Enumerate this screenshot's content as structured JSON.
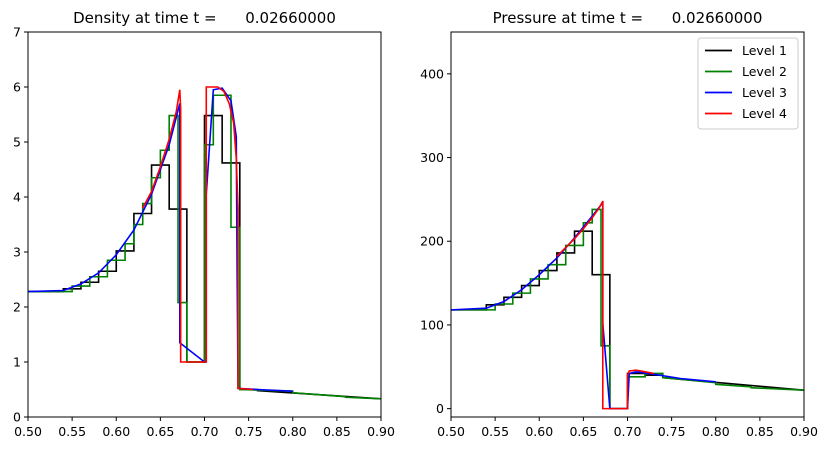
{
  "chart_data": [
    {
      "type": "line",
      "title": "Density at time t =      0.02660000",
      "xlabel": "",
      "ylabel": "",
      "xlim": [
        0.5,
        0.9
      ],
      "ylim": [
        0,
        7
      ],
      "xticks": [
        "0.50",
        "0.55",
        "0.60",
        "0.65",
        "0.70",
        "0.75",
        "0.80",
        "0.85",
        "0.90"
      ],
      "yticks": [
        "0",
        "1",
        "2",
        "3",
        "4",
        "5",
        "6",
        "7"
      ],
      "grid": false,
      "legend": null,
      "series": [
        {
          "name": "Level 1",
          "color": "#000000",
          "x": [
            0.5,
            0.54,
            0.54,
            0.56,
            0.56,
            0.58,
            0.58,
            0.6,
            0.6,
            0.62,
            0.62,
            0.64,
            0.64,
            0.66,
            0.66,
            0.68,
            0.68,
            0.7,
            0.7,
            0.72,
            0.72,
            0.74,
            0.74,
            0.76,
            0.76,
            0.9
          ],
          "y": [
            2.28,
            2.28,
            2.33,
            2.33,
            2.45,
            2.45,
            2.65,
            2.65,
            3.02,
            3.02,
            3.7,
            3.7,
            4.58,
            4.58,
            3.78,
            3.78,
            1.0,
            1.0,
            5.48,
            5.48,
            4.62,
            4.62,
            0.5,
            0.5,
            0.48,
            0.33
          ]
        },
        {
          "name": "Level 2",
          "color": "#008000",
          "x": [
            0.5,
            0.55,
            0.55,
            0.57,
            0.57,
            0.59,
            0.59,
            0.61,
            0.61,
            0.62,
            0.62,
            0.63,
            0.63,
            0.64,
            0.64,
            0.65,
            0.65,
            0.66,
            0.66,
            0.67,
            0.67,
            0.68,
            0.68,
            0.7,
            0.7,
            0.71,
            0.71,
            0.73,
            0.73,
            0.74,
            0.74,
            0.8,
            0.8,
            0.86,
            0.86,
            0.9
          ],
          "y": [
            2.28,
            2.28,
            2.38,
            2.38,
            2.55,
            2.55,
            2.85,
            2.85,
            3.15,
            3.15,
            3.5,
            3.5,
            3.88,
            3.88,
            4.35,
            4.35,
            4.85,
            4.85,
            5.48,
            5.48,
            2.08,
            2.08,
            1.0,
            1.0,
            4.95,
            4.95,
            5.85,
            5.85,
            3.45,
            3.45,
            0.5,
            0.47,
            0.44,
            0.37,
            0.36,
            0.33
          ]
        },
        {
          "name": "Level 3",
          "color": "#0000ff",
          "x": [
            0.5,
            0.54,
            0.56,
            0.58,
            0.6,
            0.62,
            0.64,
            0.66,
            0.672,
            0.672,
            0.7,
            0.702,
            0.702,
            0.71,
            0.72,
            0.73,
            0.736,
            0.737,
            0.738,
            0.76,
            0.8
          ],
          "y": [
            2.28,
            2.3,
            2.42,
            2.62,
            2.95,
            3.4,
            4.05,
            4.95,
            5.7,
            1.35,
            1.0,
            1.0,
            4.05,
            5.95,
            5.98,
            5.75,
            5.1,
            2.6,
            0.52,
            0.5,
            0.47
          ]
        },
        {
          "name": "Level 4",
          "color": "#ff0000",
          "x": [
            0.63,
            0.64,
            0.65,
            0.66,
            0.668,
            0.672,
            0.673,
            0.673,
            0.702,
            0.702,
            0.715,
            0.722,
            0.728,
            0.733,
            0.736,
            0.738,
            0.738,
            0.755
          ],
          "y": [
            3.8,
            4.1,
            4.55,
            5.05,
            5.55,
            5.95,
            5.6,
            1.0,
            1.0,
            6.0,
            6.0,
            5.92,
            5.7,
            5.35,
            4.7,
            3.8,
            0.52,
            0.5
          ]
        }
      ]
    },
    {
      "type": "line",
      "title": "Pressure at time t =      0.02660000",
      "xlabel": "",
      "ylabel": "",
      "xlim": [
        0.5,
        0.9
      ],
      "ylim": [
        -10,
        450
      ],
      "xticks": [
        "0.50",
        "0.55",
        "0.60",
        "0.65",
        "0.70",
        "0.75",
        "0.80",
        "0.85",
        "0.90"
      ],
      "yticks": [
        "0",
        "100",
        "200",
        "300",
        "400"
      ],
      "grid": false,
      "legend": "top-right",
      "series": [
        {
          "name": "Level 1",
          "color": "#000000",
          "x": [
            0.5,
            0.54,
            0.54,
            0.56,
            0.56,
            0.58,
            0.58,
            0.6,
            0.6,
            0.62,
            0.62,
            0.64,
            0.64,
            0.66,
            0.66,
            0.68,
            0.68,
            0.7,
            0.7,
            0.72,
            0.72,
            0.74,
            0.74,
            0.9
          ],
          "y": [
            118,
            118,
            124,
            124,
            133,
            133,
            147,
            147,
            165,
            165,
            186,
            186,
            212,
            212,
            160,
            160,
            0,
            0,
            42,
            42,
            40,
            40,
            37,
            22
          ]
        },
        {
          "name": "Level 2",
          "color": "#008000",
          "x": [
            0.5,
            0.55,
            0.55,
            0.57,
            0.57,
            0.59,
            0.59,
            0.61,
            0.61,
            0.63,
            0.63,
            0.65,
            0.65,
            0.66,
            0.66,
            0.67,
            0.67,
            0.68,
            0.68,
            0.7,
            0.7,
            0.72,
            0.72,
            0.74,
            0.74,
            0.8,
            0.8,
            0.84,
            0.84,
            0.9
          ],
          "y": [
            118,
            118,
            125,
            125,
            138,
            138,
            155,
            155,
            172,
            172,
            195,
            195,
            222,
            222,
            238,
            238,
            75,
            75,
            0,
            0,
            38,
            38,
            42,
            42,
            37,
            31,
            29,
            26,
            25,
            22
          ]
        },
        {
          "name": "Level 3",
          "color": "#0000ff",
          "x": [
            0.5,
            0.54,
            0.56,
            0.58,
            0.6,
            0.62,
            0.64,
            0.66,
            0.672,
            0.672,
            0.68,
            0.7,
            0.702,
            0.71,
            0.73,
            0.76,
            0.8
          ],
          "y": [
            118,
            120,
            128,
            142,
            160,
            180,
            204,
            230,
            246,
            102,
            0,
            0,
            42,
            44,
            41,
            36,
            32
          ]
        },
        {
          "name": "Level 4",
          "color": "#ff0000",
          "x": [
            0.62,
            0.64,
            0.65,
            0.66,
            0.668,
            0.672,
            0.672,
            0.7,
            0.7,
            0.702,
            0.71,
            0.72,
            0.73
          ],
          "y": [
            182,
            203,
            215,
            228,
            240,
            248,
            0,
            0,
            40,
            45,
            46,
            44,
            42
          ]
        }
      ]
    }
  ]
}
